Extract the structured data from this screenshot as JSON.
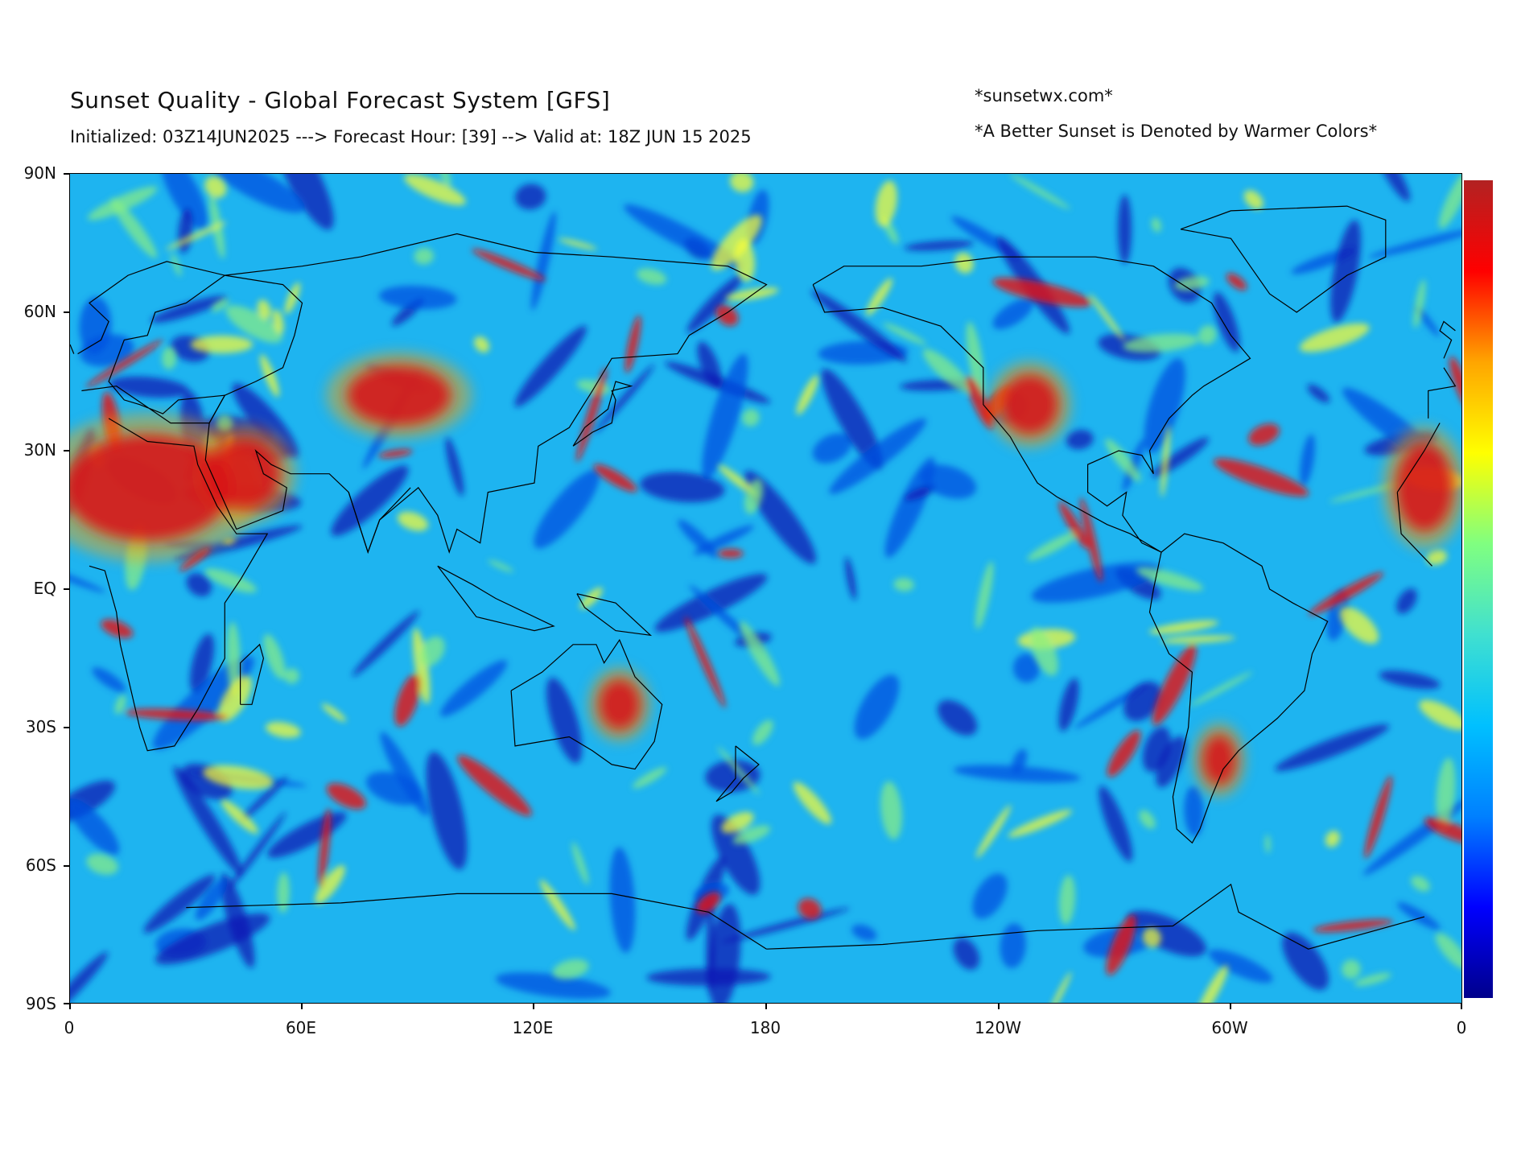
{
  "header": {
    "title": "Sunset Quality - Global Forecast System [GFS]",
    "subtitle": "Initialized: 03Z14JUN2025 ---> Forecast Hour: [39] --> Valid at: 18Z JUN 15 2025",
    "credit": "*sunsetwx.com*",
    "note": "*A Better Sunset is Denoted by Warmer Colors*"
  },
  "axes": {
    "y_labels": [
      "90N",
      "60N",
      "30N",
      "EQ",
      "30S",
      "60S",
      "90S"
    ],
    "x_labels": [
      "0",
      "60E",
      "120E",
      "180",
      "120W",
      "60W",
      "0"
    ]
  },
  "colorbar": {
    "colors": [
      "#00008b",
      "#0000ff",
      "#0080ff",
      "#00c0ff",
      "#40e0d0",
      "#80ff80",
      "#ffff00",
      "#ffa500",
      "#ff0000",
      "#b22222"
    ]
  },
  "map": {
    "ocean_base_color": "#1eb4f0",
    "hot_regions": [
      {
        "name": "sahara",
        "lon": 20,
        "lat": 22,
        "rx": 22,
        "ry": 12
      },
      {
        "name": "arabia",
        "lon": 45,
        "lat": 25,
        "rx": 10,
        "ry": 8
      },
      {
        "name": "central-asia",
        "lon": 85,
        "lat": 42,
        "rx": 14,
        "ry": 7
      },
      {
        "name": "us-southwest",
        "lon": -112,
        "lat": 40,
        "rx": 8,
        "ry": 7
      },
      {
        "name": "western-sahara",
        "lon": -10,
        "lat": 22,
        "rx": 8,
        "ry": 10
      },
      {
        "name": "australia",
        "lon": 142,
        "lat": -25,
        "rx": 6,
        "ry": 6
      },
      {
        "name": "argentina",
        "lon": -63,
        "lat": -37,
        "rx": 5,
        "ry": 6
      }
    ]
  }
}
